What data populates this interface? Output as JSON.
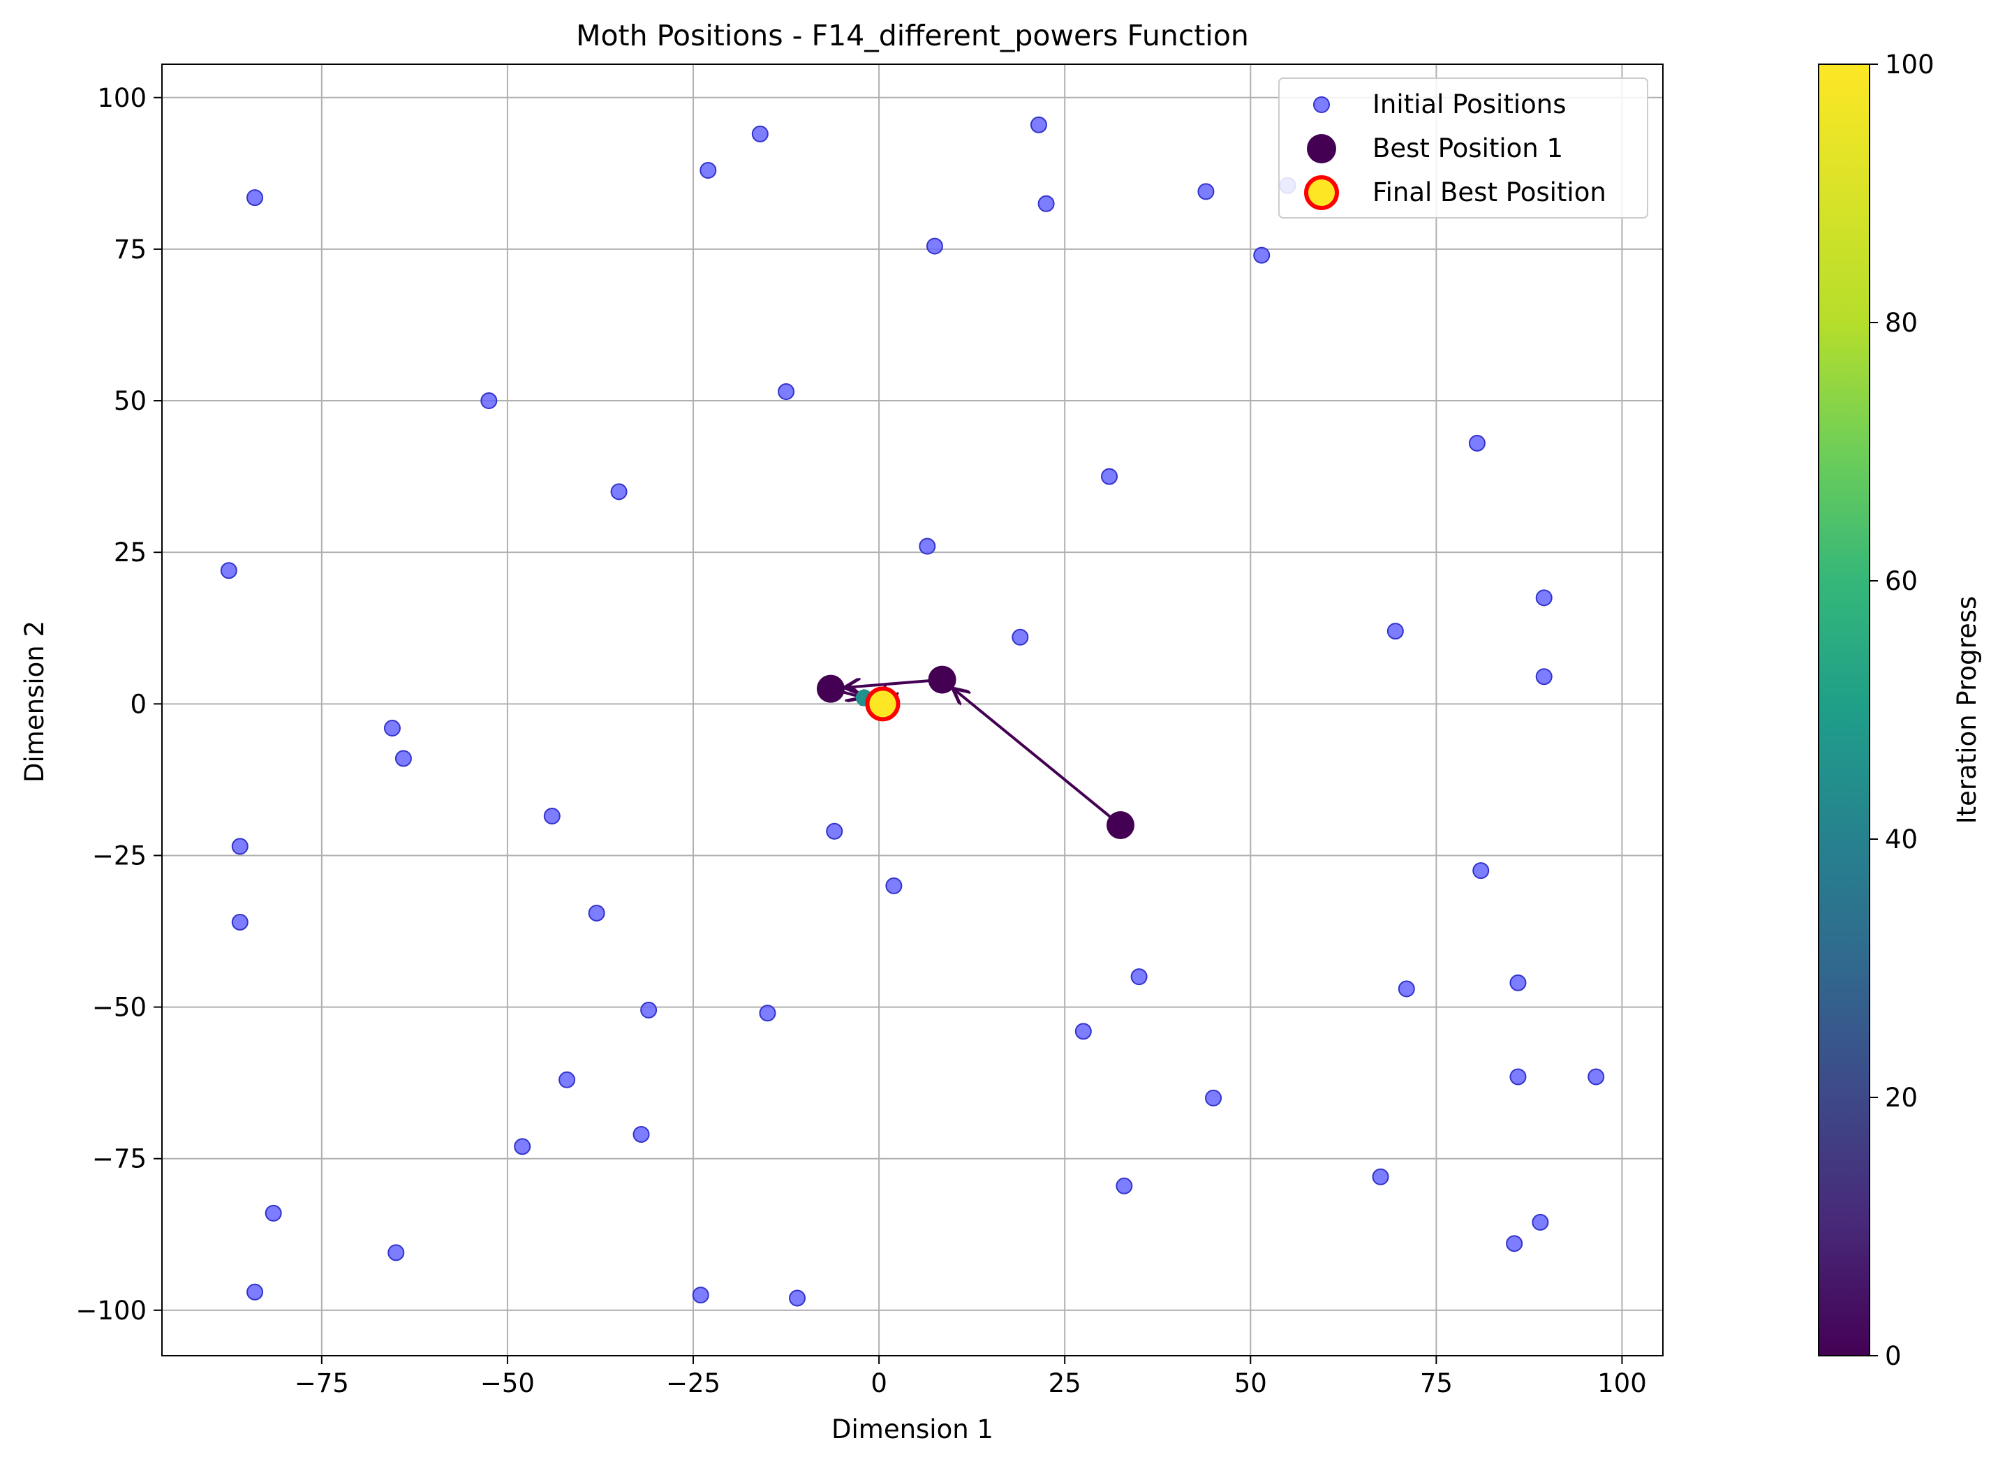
{
  "chart_data": {
    "type": "scatter",
    "title": "Moth Positions - F14_different_powers Function",
    "xlabel": "Dimension 1",
    "ylabel": "Dimension 2",
    "xlim": [
      -96.5,
      105.5
    ],
    "ylim": [
      -107.5,
      105.5
    ],
    "xticks": [
      -75,
      -50,
      -25,
      0,
      25,
      50,
      75,
      100
    ],
    "yticks": [
      -100,
      -75,
      -50,
      -25,
      0,
      25,
      50,
      75,
      100
    ],
    "grid": true,
    "legend": {
      "placement": "top-right",
      "entries": [
        "Initial Positions",
        "Best Position 1",
        "Final Best Position"
      ]
    },
    "colors": {
      "initial": "#6666ff",
      "initial_edge": "#3333cc",
      "best_path": "#440154",
      "final_fill": "#fde725",
      "final_edge": "#ff0000",
      "grid": "#b0b0b0"
    },
    "colorbar": {
      "label": "Iteration Progress",
      "range": [
        0,
        100
      ],
      "ticks": [
        0,
        20,
        40,
        60,
        80,
        100
      ],
      "colormap": "viridis"
    },
    "initial_positions": [
      [
        -84,
        83.5
      ],
      [
        -16,
        94
      ],
      [
        -23,
        88
      ],
      [
        21.5,
        95.5
      ],
      [
        22.5,
        82.5
      ],
      [
        7.5,
        75.5
      ],
      [
        44,
        84.5
      ],
      [
        55,
        85.5
      ],
      [
        51.5,
        74
      ],
      [
        -52.5,
        50
      ],
      [
        -12.5,
        51.5
      ],
      [
        -35,
        35
      ],
      [
        31,
        37.5
      ],
      [
        6.5,
        26
      ],
      [
        80.5,
        43
      ],
      [
        -87.5,
        22
      ],
      [
        89.5,
        17.5
      ],
      [
        69.5,
        12
      ],
      [
        19,
        11
      ],
      [
        89.5,
        4.5
      ],
      [
        -65.5,
        -4
      ],
      [
        -64,
        -9
      ],
      [
        -44,
        -18.5
      ],
      [
        -6,
        -21
      ],
      [
        -86,
        -23.5
      ],
      [
        81,
        -27.5
      ],
      [
        2,
        -30
      ],
      [
        -86,
        -36
      ],
      [
        -38,
        -34.5
      ],
      [
        35,
        -45
      ],
      [
        71,
        -47
      ],
      [
        86,
        -46
      ],
      [
        -31,
        -50.5
      ],
      [
        -15,
        -51
      ],
      [
        27.5,
        -54
      ],
      [
        -42,
        -62
      ],
      [
        86,
        -61.5
      ],
      [
        96.5,
        -61.5
      ],
      [
        45,
        -65
      ],
      [
        -32,
        -71
      ],
      [
        -48,
        -73
      ],
      [
        33,
        -79.5
      ],
      [
        67.5,
        -78
      ],
      [
        -81.5,
        -84
      ],
      [
        -65,
        -90.5
      ],
      [
        85.5,
        -89
      ],
      [
        89,
        -85.5
      ],
      [
        -84,
        -97
      ],
      [
        -24,
        -97.5
      ],
      [
        -11,
        -98
      ]
    ],
    "best_path": [
      [
        32.5,
        -20
      ],
      [
        8.5,
        4
      ],
      [
        -6.5,
        2.5
      ],
      [
        -2,
        1
      ],
      [
        0,
        0.5
      ],
      [
        1,
        1
      ],
      [
        0.5,
        0
      ]
    ],
    "final_best": [
      0.5,
      0
    ]
  }
}
